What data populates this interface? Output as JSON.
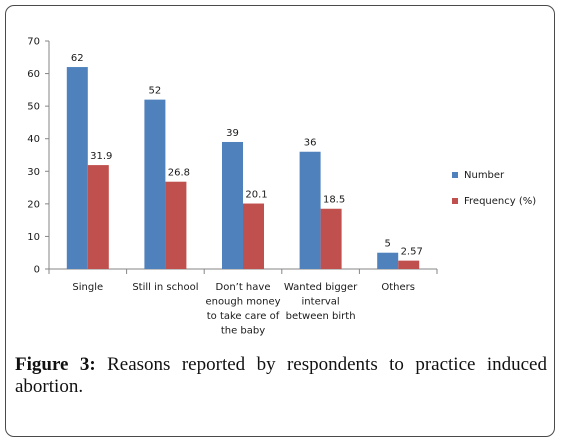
{
  "chart_data": {
    "type": "bar",
    "title": "",
    "xlabel": "",
    "ylabel": "",
    "ylim": [
      0,
      70
    ],
    "yticks": [
      0,
      10,
      20,
      30,
      40,
      50,
      60,
      70
    ],
    "grid": false,
    "legend_position": "right",
    "categories": [
      [
        "Single"
      ],
      [
        "Still in school"
      ],
      [
        "Don’t have",
        "enough money",
        "to take care of",
        "the baby"
      ],
      [
        "Wanted bigger",
        "interval",
        "between birth"
      ],
      [
        "Others"
      ]
    ],
    "series": [
      {
        "name": "Number",
        "color": "#4f81bd",
        "values": [
          62,
          52,
          39,
          36,
          5
        ],
        "labels": [
          "62",
          "52",
          "39",
          "36",
          "5"
        ]
      },
      {
        "name": "Frequency (%)",
        "color": "#c0504d",
        "values": [
          31.9,
          26.8,
          20.1,
          18.5,
          2.57
        ],
        "labels": [
          "31.9",
          "26.8",
          "20.1",
          "18.5",
          "2.57"
        ]
      }
    ]
  },
  "caption": {
    "label": "Figure 3:",
    "text": " Reasons reported by respondents to practice induced abortion."
  }
}
